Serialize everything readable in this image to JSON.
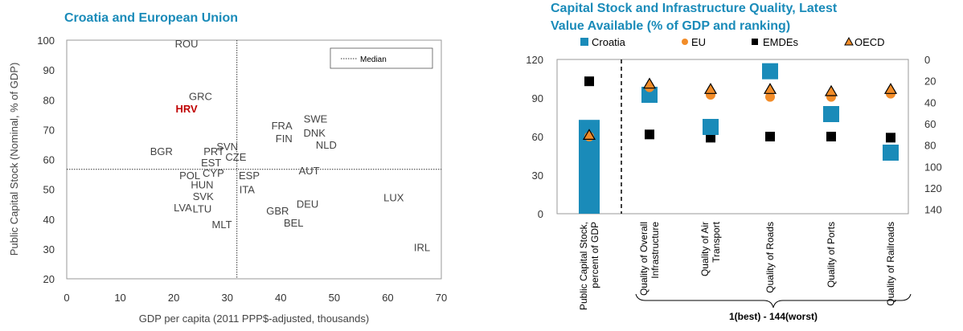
{
  "chart_data": [
    {
      "type": "scatter",
      "title": "Croatia and European Union",
      "xlabel": "GDP per capita (2011 PPP$-adjusted, thousands)",
      "ylabel": "Public Capital Stock (Nominal, % of GDP)",
      "xlim": [
        0,
        70
      ],
      "ylim": [
        20,
        100
      ],
      "xticks": [
        0,
        10,
        20,
        30,
        40,
        50,
        60,
        70
      ],
      "yticks": [
        20,
        30,
        40,
        50,
        60,
        70,
        80,
        90,
        100
      ],
      "legend": "Median",
      "median_x": 31.8,
      "median_y": 56.7,
      "highlight_color": "#c00000",
      "points": [
        {
          "label": "ROU",
          "x": 22.4,
          "y": 98.9
        },
        {
          "label": "GRC",
          "x": 25.0,
          "y": 81.3
        },
        {
          "label": "HRV",
          "x": 22.4,
          "y": 77.1,
          "highlight": true
        },
        {
          "label": "FRA",
          "x": 40.2,
          "y": 71.4
        },
        {
          "label": "SWE",
          "x": 46.5,
          "y": 73.7
        },
        {
          "label": "DNK",
          "x": 46.3,
          "y": 69.0
        },
        {
          "label": "FIN",
          "x": 40.6,
          "y": 67.2
        },
        {
          "label": "NLD",
          "x": 48.5,
          "y": 65.0
        },
        {
          "label": "SVN",
          "x": 30.0,
          "y": 64.4
        },
        {
          "label": "PRT",
          "x": 27.5,
          "y": 62.8
        },
        {
          "label": "CZE",
          "x": 31.6,
          "y": 60.9
        },
        {
          "label": "BGR",
          "x": 17.7,
          "y": 62.8
        },
        {
          "label": "EST",
          "x": 27.0,
          "y": 59.0
        },
        {
          "label": "AUT",
          "x": 45.3,
          "y": 56.4
        },
        {
          "label": "CYP",
          "x": 27.4,
          "y": 55.6
        },
        {
          "label": "POL",
          "x": 23.0,
          "y": 54.8
        },
        {
          "label": "ESP",
          "x": 34.1,
          "y": 54.7
        },
        {
          "label": "HUN",
          "x": 25.3,
          "y": 51.6
        },
        {
          "label": "ITA",
          "x": 33.7,
          "y": 50.0
        },
        {
          "label": "SVK",
          "x": 25.5,
          "y": 47.7
        },
        {
          "label": "LUX",
          "x": 61.1,
          "y": 47.3
        },
        {
          "label": "DEU",
          "x": 45.0,
          "y": 45.2
        },
        {
          "label": "LVA",
          "x": 21.7,
          "y": 44.0
        },
        {
          "label": "LTU",
          "x": 25.3,
          "y": 43.6
        },
        {
          "label": "GBR",
          "x": 39.4,
          "y": 42.9
        },
        {
          "label": "BEL",
          "x": 42.4,
          "y": 38.9
        },
        {
          "label": "MLT",
          "x": 29.0,
          "y": 38.3
        },
        {
          "label": "IRL",
          "x": 66.4,
          "y": 30.7
        }
      ]
    },
    {
      "type": "bar",
      "title_lines": [
        "Capital Stock and Infrastructure Quality, Latest",
        "Value Available (% of GDP and ranking)"
      ],
      "categories": [
        [
          "Public Capital Stock,",
          "percent of GDP"
        ],
        [
          "Quality of Overall",
          "Infrastructure"
        ],
        [
          "Quality of Air",
          "Transport"
        ],
        [
          "Quality of Roads"
        ],
        [
          "Quality of Ports"
        ],
        [
          "Quality of Railroads"
        ]
      ],
      "left_axis": {
        "range": [
          0,
          120
        ],
        "ticks": [
          0,
          30,
          60,
          90,
          120
        ]
      },
      "right_axis": {
        "range": [
          0,
          144
        ],
        "ticks": [
          0,
          20,
          40,
          60,
          80,
          100,
          120,
          140
        ],
        "inverted": true
      },
      "series": [
        {
          "name": "Croatia",
          "color": "#1a8bb9",
          "marker": "square",
          "bar_value_pct_gdp": 73,
          "rank_values": [
            null,
            33,
            63,
            11,
            51,
            87
          ]
        },
        {
          "name": "EU",
          "color": "#f28c28",
          "marker": "circle",
          "value_pct_gdp": 60,
          "rank_values": [
            null,
            26,
            33,
            35,
            35,
            32
          ]
        },
        {
          "name": "EMDEs",
          "color": "#000000",
          "marker": "square",
          "value_pct_gdp": 103,
          "rank_values": [
            null,
            70,
            73,
            72,
            72,
            73
          ]
        },
        {
          "name": "OECD",
          "color": "#f28c28",
          "edge": "#000000",
          "marker": "triangle",
          "value_pct_gdp": 61,
          "rank_values": [
            null,
            23,
            28,
            28,
            30,
            28
          ]
        }
      ],
      "bracket_label": "1(best) - 144(worst)"
    }
  ]
}
